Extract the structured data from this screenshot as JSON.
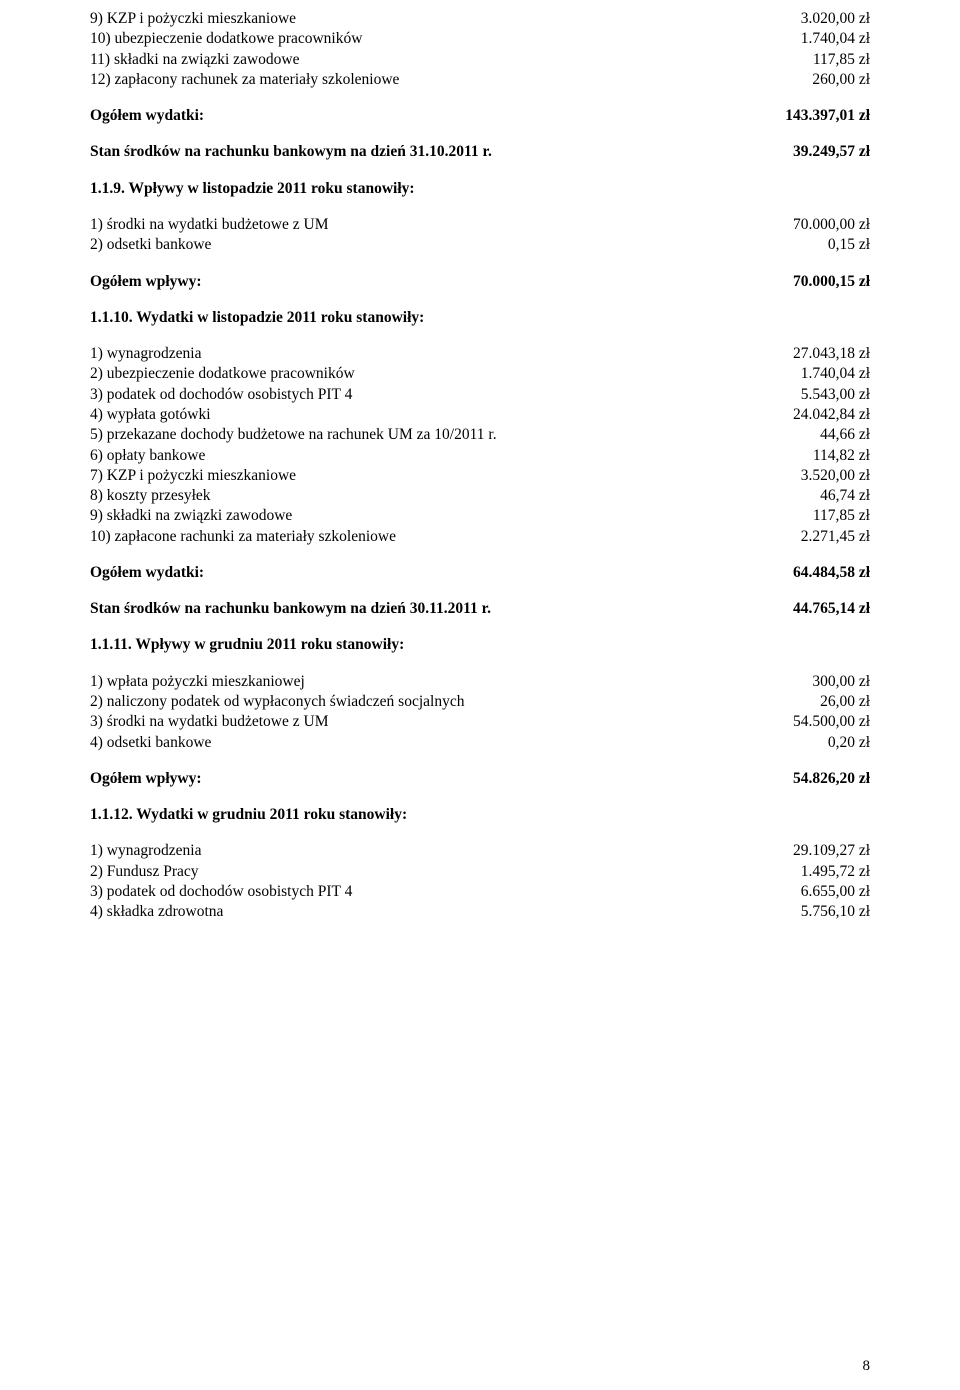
{
  "top": {
    "rows": [
      {
        "label": "9) KZP i pożyczki mieszkaniowe",
        "value": "3.020,00 zł"
      },
      {
        "label": "10) ubezpieczenie dodatkowe pracowników",
        "value": "1.740,04 zł"
      },
      {
        "label": "11) składki na związki zawodowe",
        "value": "117,85 zł"
      },
      {
        "label": "12) zapłacony rachunek za materiały szkoleniowe",
        "value": "260,00 zł"
      }
    ],
    "total": {
      "label": "Ogółem wydatki:",
      "value": "143.397,01 zł"
    },
    "balance": {
      "label": "Stan środków na rachunku bankowym na dzień 31.10.2011 r.",
      "value": "39.249,57 zł"
    }
  },
  "s119": {
    "heading": "1.1.9. Wpływy w listopadzie 2011 roku stanowiły:",
    "rows": [
      {
        "label": "1) środki na wydatki budżetowe z UM",
        "value": "70.000,00 zł"
      },
      {
        "label": "2) odsetki bankowe",
        "value": "0,15 zł"
      }
    ],
    "total": {
      "label": "Ogółem wpływy:",
      "value": "70.000,15 zł"
    }
  },
  "s1110": {
    "heading": "1.1.10. Wydatki w listopadzie 2011 roku stanowiły:",
    "rows": [
      {
        "label": "1) wynagrodzenia",
        "value": "27.043,18 zł"
      },
      {
        "label": "2) ubezpieczenie dodatkowe pracowników",
        "value": "1.740,04 zł"
      },
      {
        "label": "3) podatek od dochodów osobistych PIT 4",
        "value": "5.543,00 zł"
      },
      {
        "label": "4) wypłata gotówki",
        "value": "24.042,84 zł"
      },
      {
        "label": "5) przekazane dochody budżetowe na rachunek UM za 10/2011 r.",
        "value": "44,66 zł"
      },
      {
        "label": "6) opłaty bankowe",
        "value": "114,82 zł"
      },
      {
        "label": "7) KZP i pożyczki mieszkaniowe",
        "value": "3.520,00 zł"
      },
      {
        "label": "8) koszty przesyłek",
        "value": "46,74 zł"
      },
      {
        "label": "9) składki na związki zawodowe",
        "value": "117,85 zł"
      },
      {
        "label": "10) zapłacone rachunki za materiały szkoleniowe",
        "value": "2.271,45 zł"
      }
    ],
    "total": {
      "label": "Ogółem wydatki:",
      "value": "64.484,58 zł"
    },
    "balance": {
      "label": "Stan środków na rachunku bankowym na dzień 30.11.2011 r.",
      "value": "44.765,14 zł"
    }
  },
  "s1111": {
    "heading": "1.1.11. Wpływy w grudniu 2011 roku stanowiły:",
    "rows": [
      {
        "label": "1) wpłata pożyczki mieszkaniowej",
        "value": "300,00 zł"
      },
      {
        "label": "2) naliczony podatek od wypłaconych świadczeń socjalnych",
        "value": "26,00 zł"
      },
      {
        "label": "3) środki na wydatki budżetowe z UM",
        "value": "54.500,00 zł"
      },
      {
        "label": "4) odsetki bankowe",
        "value": "0,20 zł"
      }
    ],
    "total": {
      "label": "Ogółem wpływy:",
      "value": "54.826,20 zł"
    }
  },
  "s1112": {
    "heading": "1.1.12. Wydatki w grudniu 2011 roku stanowiły:",
    "rows": [
      {
        "label": "1) wynagrodzenia",
        "value": "29.109,27 zł"
      },
      {
        "label": "2) Fundusz Pracy",
        "value": "1.495,72 zł"
      },
      {
        "label": "3) podatek od dochodów osobistych PIT 4",
        "value": "6.655,00 zł"
      },
      {
        "label": "4) składka zdrowotna",
        "value": "5.756,10 zł"
      }
    ]
  },
  "pageNumber": "8"
}
